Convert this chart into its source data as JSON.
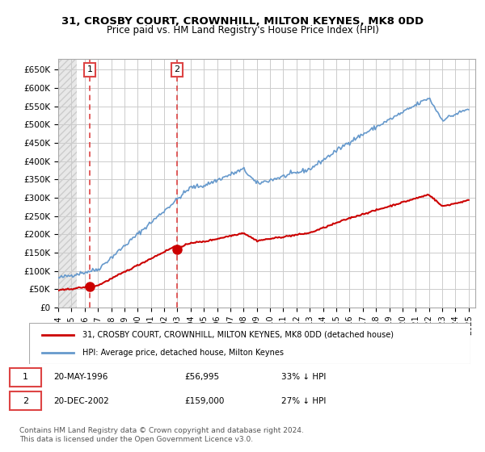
{
  "title": "31, CROSBY COURT, CROWNHILL, MILTON KEYNES, MK8 0DD",
  "subtitle": "Price paid vs. HM Land Registry's House Price Index (HPI)",
  "ylabel_ticks": [
    "£0",
    "£50K",
    "£100K",
    "£150K",
    "£200K",
    "£250K",
    "£300K",
    "£350K",
    "£400K",
    "£450K",
    "£500K",
    "£550K",
    "£600K",
    "£650K"
  ],
  "ytick_values": [
    0,
    50000,
    100000,
    150000,
    200000,
    250000,
    300000,
    350000,
    400000,
    450000,
    500000,
    550000,
    600000,
    650000
  ],
  "xlim": [
    1994,
    2025.5
  ],
  "ylim": [
    0,
    680000
  ],
  "purchase1_date": 1996.38,
  "purchase1_price": 56995,
  "purchase2_date": 2002.97,
  "purchase2_price": 159000,
  "legend_label_red": "31, CROSBY COURT, CROWNHILL, MILTON KEYNES, MK8 0DD (detached house)",
  "legend_label_blue": "HPI: Average price, detached house, Milton Keynes",
  "table_row1": "20-MAY-1996          £56,995          33% ↓ HPI",
  "table_row2": "20-DEC-2002          £159,000          27% ↓ HPI",
  "footer": "Contains HM Land Registry data © Crown copyright and database right 2024.\nThis data is licensed under the Open Government Licence v3.0.",
  "red_color": "#cc0000",
  "blue_color": "#6699cc",
  "dashed_red": "#dd4444",
  "bg_hatch_color": "#dddddd",
  "grid_color": "#cccccc"
}
